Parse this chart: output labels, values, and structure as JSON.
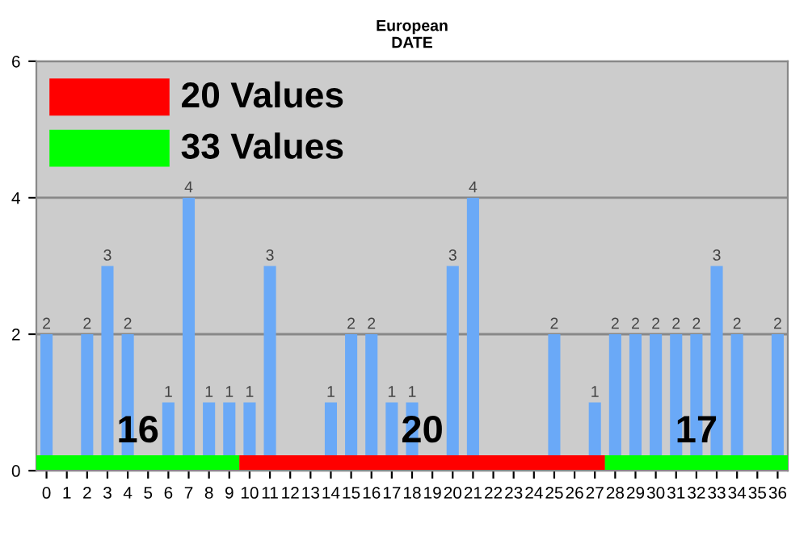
{
  "chart_data": {
    "type": "bar",
    "title": "European\nDATE",
    "categories": [
      "0",
      "1",
      "2",
      "3",
      "4",
      "5",
      "6",
      "7",
      "8",
      "9",
      "10",
      "11",
      "12",
      "13",
      "14",
      "15",
      "16",
      "17",
      "18",
      "19",
      "20",
      "21",
      "22",
      "23",
      "24",
      "25",
      "26",
      "27",
      "28",
      "29",
      "30",
      "31",
      "32",
      "33",
      "34",
      "35",
      "36"
    ],
    "values": [
      2,
      0,
      2,
      3,
      2,
      0,
      1,
      4,
      1,
      1,
      1,
      3,
      0,
      0,
      1,
      2,
      2,
      1,
      1,
      0,
      3,
      4,
      0,
      0,
      0,
      2,
      0,
      1,
      2,
      2,
      2,
      2,
      2,
      3,
      2,
      0,
      2
    ],
    "value_labels": [
      "2",
      null,
      "2",
      "3",
      "2",
      null,
      "1",
      "4",
      "1",
      "1",
      "1",
      "3",
      null,
      null,
      "1",
      "2",
      "2",
      "1",
      "1",
      null,
      "3",
      "4",
      null,
      null,
      null,
      "2",
      null,
      "1",
      "2",
      "2",
      "2",
      "2",
      "2",
      "3",
      "2",
      null,
      "2"
    ],
    "color": "#6aa9f7",
    "ylim": [
      0,
      6
    ],
    "yticks": [
      0,
      2,
      4,
      6
    ],
    "grid": "y",
    "annotations": [
      "20 Values",
      "33 Values",
      "16",
      "20",
      "17"
    ]
  }
}
